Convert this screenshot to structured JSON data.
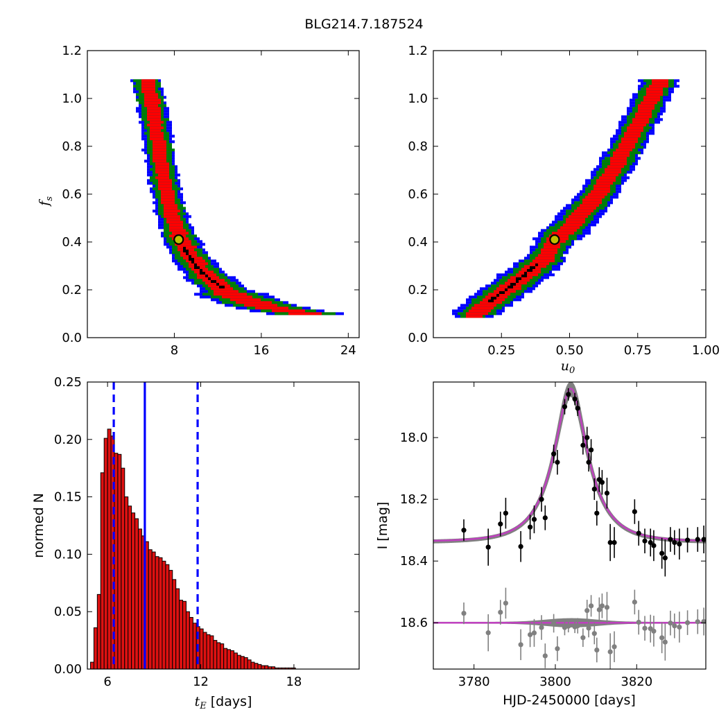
{
  "title": "BLG214.7.187524",
  "colors": {
    "blue": "#0000ff",
    "green": "#008000",
    "red": "#ff0000",
    "black": "#000000",
    "marker_fill": "#bfbf00",
    "hist_bar": "#dd1111",
    "model_line": "#bf40bf",
    "model_band": "#808080",
    "residual_points": "#808080"
  },
  "chart_data": [
    {
      "id": "fs-vs-tE",
      "type": "heatmap",
      "description_of_regions": [
        "blue",
        "green",
        "red",
        "black"
      ],
      "xlim": [
        0,
        25
      ],
      "ylim": [
        0.0,
        1.2
      ],
      "xticks": [
        8,
        16,
        24
      ],
      "yticks": [
        0.0,
        0.2,
        0.4,
        0.6,
        0.8,
        1.0,
        1.2
      ],
      "xtick_labels": [
        "8",
        "16",
        "24"
      ],
      "ytick_labels": [
        "0.0",
        "0.2",
        "0.4",
        "0.6",
        "0.8",
        "1.0",
        "1.2"
      ],
      "ylabel": "f",
      "ylabel_sub": "s",
      "xlabel": "",
      "best_fit": {
        "x": 8.4,
        "y": 0.41
      },
      "curve": [
        [
          5.4,
          1.08
        ],
        [
          6.0,
          0.95
        ],
        [
          6.5,
          0.8
        ],
        [
          7.0,
          0.66
        ],
        [
          7.6,
          0.54
        ],
        [
          8.4,
          0.43
        ],
        [
          9.5,
          0.34
        ],
        [
          11.0,
          0.26
        ],
        [
          13.0,
          0.19
        ],
        [
          15.5,
          0.145
        ],
        [
          18.0,
          0.12
        ],
        [
          21.0,
          0.1
        ]
      ],
      "black_curve": [
        [
          8.8,
          0.38
        ],
        [
          9.6,
          0.32
        ],
        [
          10.6,
          0.27
        ],
        [
          11.6,
          0.235
        ],
        [
          12.3,
          0.215
        ]
      ]
    },
    {
      "id": "fs-vs-u0",
      "type": "heatmap",
      "description_of_regions": [
        "blue",
        "green",
        "red",
        "black"
      ],
      "xlim": [
        0.0,
        1.0
      ],
      "ylim": [
        0.0,
        1.2
      ],
      "xticks": [
        0.25,
        0.5,
        0.75,
        1.0
      ],
      "yticks": [
        0.0,
        0.2,
        0.4,
        0.6,
        0.8,
        1.0,
        1.2
      ],
      "xtick_labels": [
        "0.25",
        "0.50",
        "0.75",
        "1.00"
      ],
      "ytick_labels": [
        "0.0",
        "0.2",
        "0.4",
        "0.6",
        "0.8",
        "1.0",
        "1.2"
      ],
      "xlabel": "u",
      "xlabel_sub": "0",
      "best_fit": {
        "x": 0.445,
        "y": 0.41
      },
      "curve": [
        [
          0.14,
          0.09
        ],
        [
          0.2,
          0.15
        ],
        [
          0.27,
          0.21
        ],
        [
          0.34,
          0.27
        ],
        [
          0.4,
          0.33
        ],
        [
          0.445,
          0.41
        ],
        [
          0.5,
          0.47
        ],
        [
          0.57,
          0.56
        ],
        [
          0.64,
          0.67
        ],
        [
          0.7,
          0.79
        ],
        [
          0.76,
          0.92
        ],
        [
          0.81,
          1.04
        ],
        [
          0.83,
          1.08
        ]
      ],
      "black_curve": [
        [
          0.2,
          0.155
        ],
        [
          0.25,
          0.2
        ],
        [
          0.3,
          0.24
        ],
        [
          0.35,
          0.29
        ],
        [
          0.37,
          0.31
        ]
      ]
    },
    {
      "id": "tE-histogram",
      "type": "bar",
      "xlabel": "t",
      "xlabel_sub": "E",
      "xlabel_suffix": " [days]",
      "ylabel": "normed N",
      "xlim": [
        4.7,
        22.2
      ],
      "ylim": [
        0.0,
        0.25
      ],
      "xticks": [
        6,
        12,
        18
      ],
      "yticks": [
        0.0,
        0.05,
        0.1,
        0.15,
        0.2,
        0.25
      ],
      "xtick_labels": [
        "6",
        "12",
        "18"
      ],
      "ytick_labels": [
        "0.00",
        "0.05",
        "0.10",
        "0.15",
        "0.20",
        "0.25"
      ],
      "bin_start": 4.9,
      "bin_width": 0.22,
      "values": [
        0.006,
        0.036,
        0.065,
        0.171,
        0.201,
        0.209,
        0.203,
        0.188,
        0.187,
        0.175,
        0.15,
        0.142,
        0.136,
        0.131,
        0.122,
        0.116,
        0.111,
        0.104,
        0.102,
        0.098,
        0.097,
        0.094,
        0.091,
        0.086,
        0.078,
        0.07,
        0.06,
        0.059,
        0.05,
        0.045,
        0.04,
        0.037,
        0.035,
        0.032,
        0.03,
        0.029,
        0.025,
        0.023,
        0.022,
        0.018,
        0.017,
        0.016,
        0.014,
        0.012,
        0.011,
        0.01,
        0.008,
        0.006,
        0.005,
        0.004,
        0.003,
        0.003,
        0.002,
        0.002,
        0.001,
        0.001,
        0.001,
        0.001,
        0.001,
        0.001
      ],
      "vline_median": 8.4,
      "vlines_dashed": [
        6.4,
        11.8
      ]
    },
    {
      "id": "light-curve",
      "type": "scatter",
      "xlabel": "HJD-2450000 [days]",
      "ylabel": "I [mag]",
      "xlim": [
        3770,
        3837
      ],
      "ylim": [
        18.75,
        17.82
      ],
      "xticks": [
        3780,
        3800,
        3820
      ],
      "yticks": [
        18.0,
        18.2,
        18.4,
        18.6
      ],
      "xtick_labels": [
        "3780",
        "3800",
        "3820"
      ],
      "ytick_labels": [
        "18.0",
        "18.2",
        "18.4",
        "18.6"
      ],
      "model": {
        "t0": 3803.8,
        "tE": 8.4,
        "u0": 0.445,
        "baseline": 18.337,
        "fs": 0.41
      },
      "residual_level": 18.6,
      "points": [
        [
          3777.5,
          18.3,
          0.035
        ],
        [
          3783.5,
          18.355,
          0.06
        ],
        [
          3786.5,
          18.28,
          0.04
        ],
        [
          3787.8,
          18.245,
          0.05
        ],
        [
          3791.5,
          18.353,
          0.05
        ],
        [
          3793.8,
          18.29,
          0.04
        ],
        [
          3794.8,
          18.265,
          0.045
        ],
        [
          3796.6,
          18.2,
          0.04
        ],
        [
          3797.5,
          18.26,
          0.04
        ],
        [
          3799.6,
          18.053,
          0.03
        ],
        [
          3800.5,
          18.08,
          0.04
        ],
        [
          3802.3,
          17.9,
          0.025
        ],
        [
          3803.2,
          17.86,
          0.02
        ],
        [
          3804.8,
          17.875,
          0.02
        ],
        [
          3805.5,
          17.905,
          0.025
        ],
        [
          3806.8,
          18.025,
          0.03
        ],
        [
          3807.8,
          18.0,
          0.035
        ],
        [
          3808.2,
          18.08,
          0.03
        ],
        [
          3808.8,
          18.04,
          0.035
        ],
        [
          3809.6,
          18.167,
          0.035
        ],
        [
          3810.2,
          18.245,
          0.04
        ],
        [
          3810.8,
          18.136,
          0.04
        ],
        [
          3811.5,
          18.145,
          0.04
        ],
        [
          3812.7,
          18.18,
          0.05
        ],
        [
          3813.5,
          18.34,
          0.06
        ],
        [
          3814.5,
          18.34,
          0.05
        ],
        [
          3819.5,
          18.24,
          0.04
        ],
        [
          3820.5,
          18.31,
          0.04
        ],
        [
          3822.0,
          18.335,
          0.04
        ],
        [
          3823.4,
          18.34,
          0.045
        ],
        [
          3824.2,
          18.35,
          0.05
        ],
        [
          3826.2,
          18.375,
          0.05
        ],
        [
          3827.0,
          18.39,
          0.06
        ],
        [
          3828.3,
          18.33,
          0.04
        ],
        [
          3829.3,
          18.34,
          0.04
        ],
        [
          3830.5,
          18.345,
          0.05
        ],
        [
          3832.5,
          18.332,
          0.04
        ],
        [
          3835.0,
          18.33,
          0.04
        ],
        [
          3836.5,
          18.33,
          0.045
        ]
      ]
    }
  ]
}
